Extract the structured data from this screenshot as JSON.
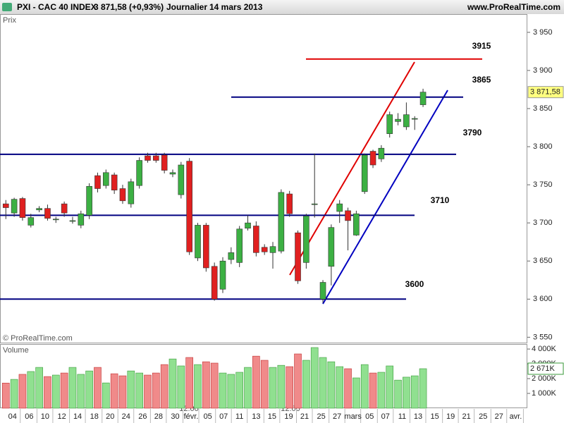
{
  "chart_data": {
    "type": "candlestick",
    "header": {
      "symbol": "PXI - CAC 40 INDEX",
      "last": "3 871,58 (+0,93%)",
      "period": "Journalier",
      "date": "14 mars 2013",
      "site": "www.ProRealTime.com"
    },
    "price_label": "Prix",
    "copyright": "© ProRealTime.com",
    "volume_label": "Volume",
    "last_price_tag": "3 871,58",
    "last_volume_tag": "2 671K",
    "time_marks": [
      "12:00",
      "12:00"
    ],
    "open": [
      3725,
      3713,
      3732,
      3697,
      3717,
      3719,
      3704,
      3725,
      3702,
      3697,
      3710,
      3762,
      3749,
      3763,
      3745,
      3725,
      3749,
      3788,
      3788,
      3789,
      3764,
      3737,
      3781,
      3654,
      3697,
      3643,
      3613,
      3652,
      3648,
      3693,
      3696,
      3668,
      3661,
      3663,
      3738,
      3687,
      3648,
      3724,
      3600,
      3643,
      3715,
      3716,
      3684,
      3741,
      3794,
      3784,
      3817,
      3833,
      3826,
      3836,
      3855
    ],
    "high": [
      3730,
      3733,
      3734,
      3712,
      3722,
      3724,
      3708,
      3728,
      3708,
      3716,
      3752,
      3766,
      3770,
      3766,
      3750,
      3758,
      3786,
      3792,
      3792,
      3792,
      3770,
      3780,
      3785,
      3700,
      3700,
      3648,
      3655,
      3668,
      3696,
      3710,
      3702,
      3672,
      3675,
      3744,
      3742,
      3690,
      3712,
      3791,
      3625,
      3698,
      3730,
      3720,
      3716,
      3791,
      3796,
      3802,
      3846,
      3844,
      3858,
      3840,
      3876
    ],
    "low": [
      3705,
      3708,
      3703,
      3694,
      3714,
      3703,
      3700,
      3708,
      3699,
      3693,
      3705,
      3740,
      3745,
      3738,
      3725,
      3720,
      3745,
      3779,
      3779,
      3765,
      3760,
      3732,
      3658,
      3650,
      3636,
      3598,
      3608,
      3646,
      3642,
      3690,
      3656,
      3658,
      3640,
      3660,
      3708,
      3620,
      3640,
      3707,
      3595,
      3618,
      3700,
      3664,
      3683,
      3738,
      3772,
      3780,
      3812,
      3828,
      3822,
      3822,
      3852
    ],
    "close": [
      3720,
      3731,
      3707,
      3707,
      3719,
      3706,
      3705,
      3713,
      3703,
      3712,
      3748,
      3745,
      3766,
      3743,
      3729,
      3754,
      3782,
      3782,
      3782,
      3769,
      3766,
      3776,
      3662,
      3697,
      3641,
      3600,
      3650,
      3661,
      3692,
      3700,
      3661,
      3662,
      3669,
      3740,
      3712,
      3624,
      3709,
      3725,
      3622,
      3694,
      3725,
      3703,
      3712,
      3789,
      3776,
      3798,
      3842,
      3836,
      3842,
      3837,
      3871.58
    ],
    "volume": [
      1700,
      1950,
      2290,
      2480,
      2760,
      2140,
      2240,
      2380,
      2760,
      2290,
      2520,
      2760,
      1710,
      2330,
      2190,
      2520,
      2380,
      2240,
      2380,
      2950,
      3330,
      2860,
      3430,
      2950,
      3140,
      3050,
      2380,
      2290,
      2430,
      2760,
      3520,
      3240,
      2760,
      2900,
      2810,
      3670,
      3240,
      4100,
      3430,
      3140,
      2810,
      2670,
      2050,
      2950,
      2380,
      2430,
      2860,
      1900,
      2100,
      2190,
      2671
    ],
    "up_color": "#3cb043",
    "down_color": "#e02020",
    "xlim": [
      -0.7,
      62.5
    ],
    "xticks": [
      {
        "value": 0.8,
        "label": "04"
      },
      {
        "value": 2.8,
        "label": "06"
      },
      {
        "value": 4.7,
        "label": "10"
      },
      {
        "value": 6.7,
        "label": "12"
      },
      {
        "value": 8.6,
        "label": "14"
      },
      {
        "value": 10.6,
        "label": "18"
      },
      {
        "value": 12.5,
        "label": "20"
      },
      {
        "value": 14.4,
        "label": "24"
      },
      {
        "value": 16.4,
        "label": "26"
      },
      {
        "value": 18.3,
        "label": "28"
      },
      {
        "value": 20.3,
        "label": "30"
      },
      {
        "value": 22.2,
        "label": "févr."
      },
      {
        "value": 24.2,
        "label": "05"
      },
      {
        "value": 26.1,
        "label": "07"
      },
      {
        "value": 28.0,
        "label": "11"
      },
      {
        "value": 30.0,
        "label": "13"
      },
      {
        "value": 31.9,
        "label": "15"
      },
      {
        "value": 33.9,
        "label": "19"
      },
      {
        "value": 35.8,
        "label": "21"
      },
      {
        "value": 37.8,
        "label": "25"
      },
      {
        "value": 39.7,
        "label": "27"
      },
      {
        "value": 41.6,
        "label": "mars"
      },
      {
        "value": 43.6,
        "label": "05"
      },
      {
        "value": 45.5,
        "label": "07"
      },
      {
        "value": 47.5,
        "label": "11"
      },
      {
        "value": 49.4,
        "label": "13"
      },
      {
        "value": 51.4,
        "label": "15"
      },
      {
        "value": 53.3,
        "label": "19"
      },
      {
        "value": 55.2,
        "label": "21"
      },
      {
        "value": 57.2,
        "label": "25"
      },
      {
        "value": 59.1,
        "label": "27"
      },
      {
        "value": 61.1,
        "label": "avr."
      }
    ],
    "ylim": [
      3542,
      3973
    ],
    "yticks": [
      {
        "value": 3550,
        "label": "3 550"
      },
      {
        "value": 3600,
        "label": "3 600"
      },
      {
        "value": 3650,
        "label": "3 650"
      },
      {
        "value": 3700,
        "label": "3 700"
      },
      {
        "value": 3750,
        "label": "3 750"
      },
      {
        "value": 3800,
        "label": "3 800"
      },
      {
        "value": 3850,
        "label": "3 850"
      },
      {
        "value": 3900,
        "label": "3 900"
      },
      {
        "value": 3950,
        "label": "3 950"
      }
    ],
    "vlim": [
      0,
      4290
    ],
    "vticks": [
      {
        "value": 1000,
        "label": "1 000K"
      },
      {
        "value": 2000,
        "label": "2 000K"
      },
      {
        "value": 3000,
        "label": "3 000K"
      },
      {
        "value": 4000,
        "label": "4 000K"
      }
    ],
    "levels": [
      {
        "value": 3915,
        "color": "#e00000"
      },
      {
        "value": 3865,
        "color": "#000080"
      },
      {
        "value": 3790,
        "color": "#000080"
      },
      {
        "value": 3710,
        "color": "#000080"
      },
      {
        "value": 3600,
        "color": "#000080"
      }
    ]
  }
}
